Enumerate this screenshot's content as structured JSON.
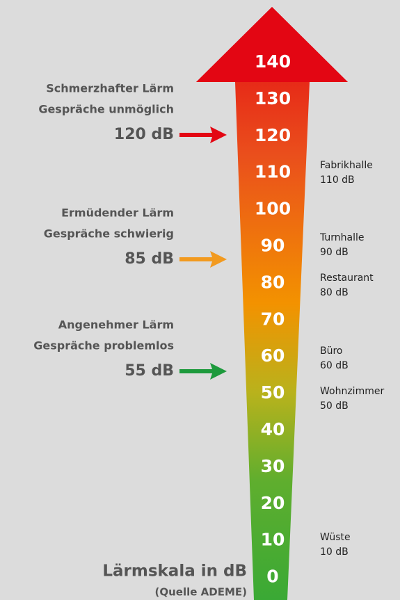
{
  "scale": [
    140,
    130,
    120,
    110,
    100,
    90,
    80,
    70,
    60,
    50,
    40,
    30,
    20,
    10,
    0
  ],
  "zones": [
    {
      "lines": [
        "Schmerzhafter Lärm",
        "Gespräche unmöglich"
      ],
      "level": "120 dB"
    },
    {
      "lines": [
        "Ermüdender Lärm",
        "Gespräche schwierig"
      ],
      "level": "85 dB"
    },
    {
      "lines": [
        "Angenehmer Lärm",
        "Gespräche problemlos"
      ],
      "level": "55 dB"
    }
  ],
  "examples": [
    {
      "name": "Fabrikhalle",
      "level": "110 dB"
    },
    {
      "name": "Turnhalle",
      "level": "90 dB"
    },
    {
      "name": "Restaurant",
      "level": "80 dB"
    },
    {
      "name": "Büro",
      "level": "60 dB"
    },
    {
      "name": "Wohnzimmer",
      "level": "50 dB"
    },
    {
      "name": "Wüste",
      "level": "10 dB"
    }
  ],
  "title": "Lärmskala in dB",
  "source": "(Quelle ADEME)"
}
